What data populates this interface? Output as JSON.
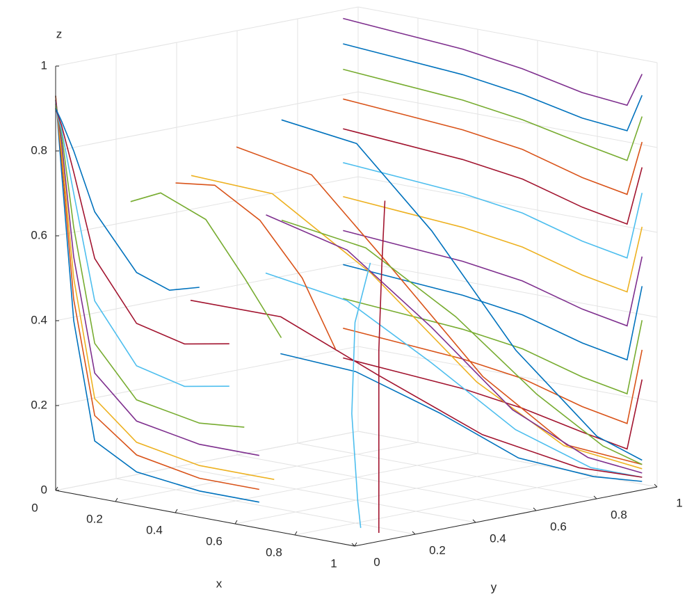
{
  "chart_data": {
    "type": "line3d",
    "xlabel": "x",
    "ylabel": "y",
    "zlabel": "z",
    "xlim": [
      0,
      1
    ],
    "ylim": [
      0,
      1
    ],
    "zlim": [
      0,
      1
    ],
    "xticks": [
      0,
      0.2,
      0.4,
      0.6,
      0.8,
      1
    ],
    "yticks": [
      0,
      0.2,
      0.4,
      0.6,
      0.8,
      1
    ],
    "zticks": [
      0,
      0.2,
      0.4,
      0.6,
      0.8,
      1
    ],
    "grid": true,
    "series": [
      {
        "color": "#0072BD",
        "x": [
          0,
          0.01,
          0.03,
          0.08,
          0.2,
          0.4,
          0.6
        ],
        "y": [
          0,
          0.01,
          0.03,
          0.05,
          0.07,
          0.08,
          0.08
        ],
        "z": [
          0.93,
          0.75,
          0.4,
          0.12,
          0.06,
          0.04,
          0.04
        ]
      },
      {
        "color": "#D95319",
        "x": [
          0,
          0.01,
          0.03,
          0.08,
          0.2,
          0.4,
          0.6
        ],
        "y": [
          0,
          0.01,
          0.03,
          0.05,
          0.07,
          0.08,
          0.08
        ],
        "z": [
          0.93,
          0.78,
          0.45,
          0.18,
          0.1,
          0.07,
          0.07
        ]
      },
      {
        "color": "#EDB120",
        "x": [
          0,
          0.01,
          0.03,
          0.08,
          0.2,
          0.4,
          0.65
        ],
        "y": [
          0,
          0.01,
          0.03,
          0.05,
          0.07,
          0.08,
          0.08
        ],
        "z": [
          0.92,
          0.8,
          0.5,
          0.22,
          0.13,
          0.1,
          0.1
        ]
      },
      {
        "color": "#7E2F8E",
        "x": [
          0,
          0.01,
          0.03,
          0.08,
          0.2,
          0.4,
          0.6
        ],
        "y": [
          0,
          0.01,
          0.03,
          0.05,
          0.07,
          0.08,
          0.08
        ],
        "z": [
          0.92,
          0.82,
          0.55,
          0.28,
          0.18,
          0.15,
          0.15
        ]
      },
      {
        "color": "#77AC30",
        "x": [
          0,
          0.01,
          0.03,
          0.08,
          0.2,
          0.4,
          0.55
        ],
        "y": [
          0,
          0.01,
          0.03,
          0.05,
          0.07,
          0.08,
          0.08
        ],
        "z": [
          0.91,
          0.84,
          0.62,
          0.35,
          0.23,
          0.2,
          0.21
        ]
      },
      {
        "color": "#4DBEEE",
        "x": [
          0,
          0.01,
          0.03,
          0.08,
          0.2,
          0.35,
          0.5
        ],
        "y": [
          0,
          0.01,
          0.03,
          0.05,
          0.07,
          0.08,
          0.08
        ],
        "z": [
          0.9,
          0.85,
          0.7,
          0.45,
          0.31,
          0.28,
          0.3
        ]
      },
      {
        "color": "#A2142F",
        "x": [
          0,
          0.01,
          0.03,
          0.08,
          0.2,
          0.35,
          0.5
        ],
        "y": [
          0,
          0.01,
          0.03,
          0.05,
          0.07,
          0.08,
          0.08
        ],
        "z": [
          0.9,
          0.86,
          0.75,
          0.55,
          0.41,
          0.38,
          0.4
        ]
      },
      {
        "color": "#0072BD",
        "x": [
          0,
          0.01,
          0.03,
          0.08,
          0.2,
          0.3,
          0.4
        ],
        "y": [
          0,
          0.01,
          0.03,
          0.05,
          0.07,
          0.08,
          0.08
        ],
        "z": [
          0.9,
          0.87,
          0.8,
          0.66,
          0.53,
          0.5,
          0.52
        ]
      },
      {
        "color": "#7E2F8E",
        "x": [
          0,
          0.2,
          0.4,
          0.6,
          0.8,
          0.95,
          1
        ],
        "y": [
          0.95,
          0.95,
          0.95,
          0.95,
          0.95,
          0.95,
          0.95
        ],
        "z": [
          0.98,
          0.97,
          0.96,
          0.94,
          0.91,
          0.9,
          0.98
        ]
      },
      {
        "color": "#0072BD",
        "x": [
          0,
          0.2,
          0.4,
          0.6,
          0.8,
          0.95,
          1
        ],
        "y": [
          0.95,
          0.95,
          0.95,
          0.95,
          0.95,
          0.95,
          0.95
        ],
        "z": [
          0.92,
          0.91,
          0.9,
          0.88,
          0.85,
          0.84,
          0.93
        ]
      },
      {
        "color": "#77AC30",
        "x": [
          0,
          0.2,
          0.4,
          0.6,
          0.8,
          0.95,
          1
        ],
        "y": [
          0.95,
          0.95,
          0.95,
          0.95,
          0.95,
          0.95,
          0.95
        ],
        "z": [
          0.86,
          0.85,
          0.84,
          0.82,
          0.79,
          0.77,
          0.88
        ]
      },
      {
        "color": "#D95319",
        "x": [
          0,
          0.2,
          0.4,
          0.6,
          0.8,
          0.95,
          1
        ],
        "y": [
          0.95,
          0.95,
          0.95,
          0.95,
          0.95,
          0.95,
          0.95
        ],
        "z": [
          0.79,
          0.78,
          0.77,
          0.75,
          0.71,
          0.69,
          0.82
        ]
      },
      {
        "color": "#A2142F",
        "x": [
          0,
          0.2,
          0.4,
          0.6,
          0.8,
          0.95,
          1
        ],
        "y": [
          0.95,
          0.95,
          0.95,
          0.95,
          0.95,
          0.95,
          0.95
        ],
        "z": [
          0.72,
          0.71,
          0.7,
          0.68,
          0.64,
          0.62,
          0.76
        ]
      },
      {
        "color": "#4DBEEE",
        "x": [
          0,
          0.2,
          0.4,
          0.6,
          0.8,
          0.95,
          1
        ],
        "y": [
          0.95,
          0.95,
          0.95,
          0.95,
          0.95,
          0.95,
          0.95
        ],
        "z": [
          0.64,
          0.63,
          0.62,
          0.6,
          0.56,
          0.54,
          0.7
        ]
      },
      {
        "color": "#EDB120",
        "x": [
          0,
          0.2,
          0.4,
          0.6,
          0.8,
          0.95,
          1
        ],
        "y": [
          0.95,
          0.95,
          0.95,
          0.95,
          0.95,
          0.95,
          0.95
        ],
        "z": [
          0.56,
          0.55,
          0.54,
          0.52,
          0.48,
          0.46,
          0.62
        ]
      },
      {
        "color": "#7E2F8E",
        "x": [
          0,
          0.2,
          0.4,
          0.6,
          0.8,
          0.95,
          1
        ],
        "y": [
          0.95,
          0.95,
          0.95,
          0.95,
          0.95,
          0.95,
          0.95
        ],
        "z": [
          0.48,
          0.47,
          0.46,
          0.44,
          0.4,
          0.38,
          0.55
        ]
      },
      {
        "color": "#0072BD",
        "x": [
          0,
          0.2,
          0.4,
          0.6,
          0.8,
          0.95,
          1
        ],
        "y": [
          0.95,
          0.95,
          0.95,
          0.95,
          0.95,
          0.95,
          0.95
        ],
        "z": [
          0.4,
          0.39,
          0.38,
          0.36,
          0.32,
          0.3,
          0.48
        ]
      },
      {
        "color": "#77AC30",
        "x": [
          0,
          0.2,
          0.4,
          0.6,
          0.8,
          0.95,
          1
        ],
        "y": [
          0.95,
          0.95,
          0.95,
          0.95,
          0.95,
          0.95,
          0.95
        ],
        "z": [
          0.32,
          0.31,
          0.3,
          0.28,
          0.24,
          0.22,
          0.4
        ]
      },
      {
        "color": "#D95319",
        "x": [
          0,
          0.2,
          0.4,
          0.6,
          0.8,
          0.95,
          1
        ],
        "y": [
          0.95,
          0.95,
          0.95,
          0.95,
          0.95,
          0.95,
          0.95
        ],
        "z": [
          0.25,
          0.24,
          0.23,
          0.21,
          0.17,
          0.15,
          0.33
        ]
      },
      {
        "color": "#A2142F",
        "x": [
          0,
          0.2,
          0.4,
          0.6,
          0.8,
          0.95,
          1
        ],
        "y": [
          0.95,
          0.95,
          0.95,
          0.95,
          0.95,
          0.95,
          0.95
        ],
        "z": [
          0.18,
          0.17,
          0.16,
          0.14,
          0.11,
          0.09,
          0.26
        ]
      },
      {
        "color": "#0072BD",
        "x": [
          0.3,
          0.45,
          0.6,
          0.75,
          0.9,
          1
        ],
        "y": [
          0.45,
          0.55,
          0.65,
          0.78,
          0.9,
          0.95
        ],
        "z": [
          0.85,
          0.8,
          0.6,
          0.32,
          0.12,
          0.07
        ]
      },
      {
        "color": "#D95319",
        "x": [
          0.2,
          0.35,
          0.5,
          0.7,
          0.85,
          1
        ],
        "y": [
          0.4,
          0.5,
          0.6,
          0.72,
          0.85,
          0.95
        ],
        "z": [
          0.78,
          0.72,
          0.52,
          0.26,
          0.1,
          0.06
        ]
      },
      {
        "color": "#EDB120",
        "x": [
          0.15,
          0.3,
          0.5,
          0.7,
          0.85,
          1
        ],
        "y": [
          0.3,
          0.42,
          0.55,
          0.7,
          0.84,
          0.95
        ],
        "z": [
          0.72,
          0.68,
          0.5,
          0.25,
          0.1,
          0.05
        ]
      },
      {
        "color": "#7E2F8E",
        "x": [
          0.4,
          0.55,
          0.7,
          0.82,
          0.92,
          1
        ],
        "y": [
          0.3,
          0.42,
          0.55,
          0.7,
          0.85,
          0.95
        ],
        "z": [
          0.66,
          0.58,
          0.4,
          0.2,
          0.08,
          0.04
        ]
      },
      {
        "color": "#77AC30",
        "x": [
          0.25,
          0.45,
          0.65,
          0.8,
          0.92,
          1
        ],
        "y": [
          0.5,
          0.58,
          0.68,
          0.8,
          0.9,
          0.95
        ],
        "z": [
          0.6,
          0.55,
          0.4,
          0.22,
          0.1,
          0.06
        ]
      },
      {
        "color": "#4DBEEE",
        "x": [
          0.5,
          0.62,
          0.75,
          0.85,
          0.94,
          1
        ],
        "y": [
          0.2,
          0.35,
          0.5,
          0.68,
          0.84,
          0.95
        ],
        "z": [
          0.55,
          0.48,
          0.33,
          0.16,
          0.06,
          0.03
        ]
      },
      {
        "color": "#A2142F",
        "x": [
          0.35,
          0.5,
          0.65,
          0.8,
          0.92,
          1
        ],
        "y": [
          0.1,
          0.25,
          0.42,
          0.62,
          0.82,
          0.95
        ],
        "z": [
          0.48,
          0.44,
          0.3,
          0.15,
          0.06,
          0.03
        ]
      },
      {
        "color": "#0072BD",
        "x": [
          0.6,
          0.7,
          0.8,
          0.88,
          0.95,
          1
        ],
        "y": [
          0.15,
          0.3,
          0.48,
          0.66,
          0.84,
          0.95
        ],
        "z": [
          0.38,
          0.33,
          0.22,
          0.1,
          0.04,
          0.02
        ]
      },
      {
        "color": "#A2142F",
        "x": [
          1,
          1,
          1,
          1,
          1
        ],
        "y": [
          0.08,
          0.08,
          0.08,
          0.09,
          0.1
        ],
        "z": [
          0.02,
          0.2,
          0.45,
          0.65,
          0.8
        ]
      },
      {
        "color": "#4DBEEE",
        "x": [
          1,
          0.98,
          0.95,
          0.9,
          0.85
        ],
        "y": [
          0.02,
          0.03,
          0.04,
          0.1,
          0.2
        ],
        "z": [
          0.04,
          0.1,
          0.3,
          0.5,
          0.62
        ]
      },
      {
        "color": "#77AC30",
        "x": [
          0.2,
          0.25,
          0.3,
          0.33,
          0.35
        ],
        "y": [
          0.05,
          0.1,
          0.2,
          0.3,
          0.4
        ],
        "z": [
          0.7,
          0.72,
          0.65,
          0.5,
          0.35
        ]
      },
      {
        "color": "#D95319",
        "x": [
          0.3,
          0.35,
          0.4,
          0.42,
          0.43
        ],
        "y": [
          0.1,
          0.18,
          0.28,
          0.4,
          0.5
        ],
        "z": [
          0.75,
          0.74,
          0.65,
          0.5,
          0.32
        ]
      }
    ]
  }
}
